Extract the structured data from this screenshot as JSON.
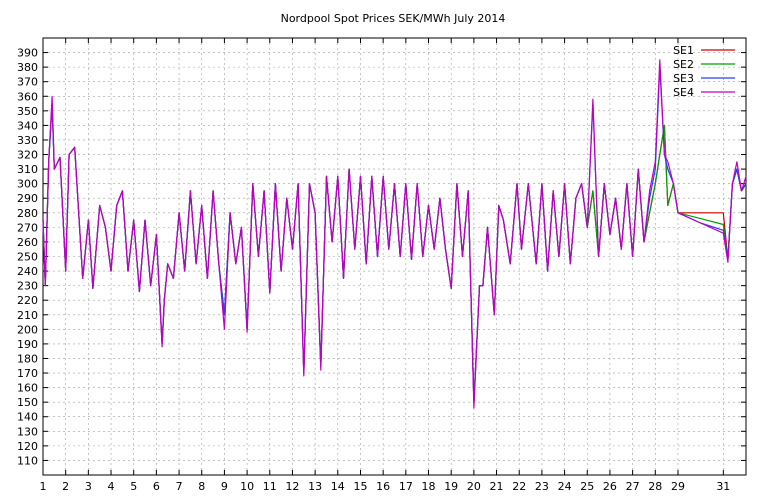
{
  "chart_data": {
    "type": "line",
    "title": "Nordpool Spot Prices SEK/MWh July 2014",
    "xlabel": "",
    "ylabel": "",
    "xlim": [
      1,
      32
    ],
    "ylim": [
      100,
      400
    ],
    "x_ticks": [
      "1",
      "2",
      "3",
      "4",
      "5",
      "6",
      "7",
      "8",
      "9",
      "10",
      "11",
      "12",
      "13",
      "14",
      "15",
      "16",
      "17",
      "18",
      "19",
      "20",
      "21",
      "22",
      "23",
      "24",
      "25",
      "26",
      "27",
      "28",
      "29",
      "31"
    ],
    "x_tick_values": [
      1,
      2,
      3,
      4,
      5,
      6,
      7,
      8,
      9,
      10,
      11,
      12,
      13,
      14,
      15,
      16,
      17,
      18,
      19,
      20,
      21,
      22,
      23,
      24,
      25,
      26,
      27,
      28,
      29,
      31
    ],
    "y_ticks": [
      110,
      120,
      130,
      140,
      150,
      160,
      170,
      180,
      190,
      200,
      210,
      220,
      230,
      240,
      250,
      260,
      270,
      280,
      290,
      300,
      310,
      320,
      330,
      340,
      350,
      360,
      370,
      380,
      390
    ],
    "grid": true,
    "legend_position": "top-right",
    "series": [
      {
        "name": "SE1",
        "color": "#d00000",
        "x": [
          1.0,
          1.1,
          1.25,
          1.4,
          1.5,
          1.75,
          2.0,
          2.15,
          2.4,
          2.75,
          3.0,
          3.2,
          3.5,
          3.75,
          4.0,
          4.25,
          4.5,
          4.75,
          5.0,
          5.25,
          5.5,
          5.75,
          6.0,
          6.25,
          6.35,
          6.5,
          6.75,
          7.0,
          7.25,
          7.5,
          7.75,
          8.0,
          8.25,
          8.5,
          8.75,
          9.0,
          9.25,
          9.5,
          9.75,
          10.0,
          10.25,
          10.5,
          10.75,
          11.0,
          11.25,
          11.5,
          11.75,
          12.0,
          12.25,
          12.5,
          12.75,
          13.0,
          13.25,
          13.5,
          13.75,
          14.0,
          14.25,
          14.5,
          14.75,
          15.0,
          15.25,
          15.5,
          15.75,
          16.0,
          16.25,
          16.5,
          16.75,
          17.0,
          17.25,
          17.5,
          17.75,
          18.0,
          18.25,
          18.5,
          18.75,
          19.0,
          19.25,
          19.5,
          19.75,
          20.0,
          20.25,
          20.4,
          20.6,
          20.9,
          21.1,
          21.3,
          21.6,
          21.9,
          22.1,
          22.4,
          22.75,
          23.0,
          23.25,
          23.5,
          23.75,
          24.0,
          24.25,
          24.5,
          24.75,
          25.0,
          25.25,
          25.5,
          25.75,
          26.0,
          26.25,
          26.5,
          26.75,
          27.0,
          27.25,
          27.5,
          27.75,
          28.0,
          28.2,
          28.4,
          28.55,
          28.8,
          29.0,
          30.0,
          31.0,
          31.2,
          31.4,
          31.6,
          31.8,
          32.0
        ],
        "values": [
          275,
          230,
          315,
          355,
          310,
          318,
          240,
          320,
          325,
          235,
          275,
          228,
          285,
          270,
          240,
          285,
          295,
          240,
          275,
          226,
          275,
          230,
          265,
          190,
          220,
          245,
          235,
          280,
          240,
          295,
          245,
          285,
          235,
          295,
          245,
          210,
          280,
          245,
          270,
          200,
          300,
          250,
          295,
          225,
          300,
          240,
          290,
          255,
          300,
          170,
          300,
          280,
          175,
          305,
          260,
          305,
          235,
          310,
          255,
          305,
          245,
          305,
          250,
          305,
          255,
          300,
          250,
          300,
          248,
          300,
          250,
          285,
          255,
          290,
          255,
          228,
          300,
          250,
          295,
          150,
          230,
          230,
          270,
          210,
          285,
          275,
          245,
          300,
          255,
          300,
          245,
          300,
          240,
          295,
          250,
          300,
          245,
          290,
          300,
          270,
          295,
          250,
          300,
          265,
          290,
          255,
          300,
          250,
          310,
          260,
          280,
          300,
          320,
          340,
          285,
          300,
          280,
          280,
          280,
          248,
          300,
          310,
          295,
          300
        ]
      },
      {
        "name": "SE2",
        "color": "#00a000",
        "x": [
          1.0,
          1.1,
          1.25,
          1.4,
          1.5,
          1.75,
          2.0,
          2.15,
          2.4,
          2.75,
          3.0,
          3.2,
          3.5,
          3.75,
          4.0,
          4.25,
          4.5,
          4.75,
          5.0,
          5.25,
          5.5,
          5.75,
          6.0,
          6.25,
          6.35,
          6.5,
          6.75,
          7.0,
          7.25,
          7.5,
          7.75,
          8.0,
          8.25,
          8.5,
          8.75,
          9.0,
          9.25,
          9.5,
          9.75,
          10.0,
          10.25,
          10.5,
          10.75,
          11.0,
          11.25,
          11.5,
          11.75,
          12.0,
          12.25,
          12.5,
          12.75,
          13.0,
          13.25,
          13.5,
          13.75,
          14.0,
          14.25,
          14.5,
          14.75,
          15.0,
          15.25,
          15.5,
          15.75,
          16.0,
          16.25,
          16.5,
          16.75,
          17.0,
          17.25,
          17.5,
          17.75,
          18.0,
          18.25,
          18.5,
          18.75,
          19.0,
          19.25,
          19.5,
          19.75,
          20.0,
          20.25,
          20.4,
          20.6,
          20.9,
          21.1,
          21.3,
          21.6,
          21.9,
          22.1,
          22.4,
          22.75,
          23.0,
          23.25,
          23.5,
          23.75,
          24.0,
          24.25,
          24.5,
          24.75,
          25.0,
          25.25,
          25.5,
          25.75,
          26.0,
          26.25,
          26.5,
          26.75,
          27.0,
          27.25,
          27.5,
          27.75,
          28.0,
          28.2,
          28.4,
          28.55,
          28.8,
          29.0,
          30.0,
          31.0,
          31.2,
          31.4,
          31.6,
          31.8,
          32.0
        ],
        "values": [
          275,
          230,
          315,
          355,
          310,
          318,
          240,
          320,
          325,
          235,
          275,
          228,
          285,
          270,
          240,
          285,
          295,
          240,
          275,
          226,
          275,
          230,
          265,
          190,
          220,
          245,
          235,
          280,
          240,
          295,
          245,
          285,
          235,
          295,
          245,
          210,
          280,
          245,
          270,
          200,
          300,
          250,
          295,
          225,
          300,
          240,
          290,
          255,
          300,
          170,
          300,
          280,
          175,
          305,
          260,
          305,
          235,
          310,
          255,
          305,
          245,
          305,
          250,
          305,
          255,
          300,
          250,
          300,
          248,
          300,
          250,
          285,
          255,
          290,
          255,
          228,
          300,
          250,
          295,
          150,
          230,
          230,
          270,
          210,
          285,
          275,
          245,
          300,
          255,
          300,
          245,
          300,
          240,
          295,
          250,
          300,
          245,
          290,
          300,
          270,
          295,
          250,
          300,
          265,
          290,
          255,
          300,
          250,
          310,
          260,
          280,
          300,
          320,
          340,
          285,
          300,
          280,
          276,
          272,
          248,
          300,
          310,
          295,
          300
        ]
      },
      {
        "name": "SE3",
        "color": "#2040ff",
        "x": [
          1.0,
          1.1,
          1.25,
          1.4,
          1.5,
          1.75,
          2.0,
          2.15,
          2.4,
          2.75,
          3.0,
          3.2,
          3.5,
          3.75,
          4.0,
          4.25,
          4.5,
          4.75,
          5.0,
          5.25,
          5.5,
          5.75,
          6.0,
          6.25,
          6.35,
          6.5,
          6.75,
          7.0,
          7.25,
          7.5,
          7.75,
          8.0,
          8.25,
          8.5,
          8.75,
          9.0,
          9.25,
          9.5,
          9.75,
          10.0,
          10.25,
          10.5,
          10.75,
          11.0,
          11.25,
          11.5,
          11.75,
          12.0,
          12.25,
          12.5,
          12.75,
          13.0,
          13.25,
          13.5,
          13.75,
          14.0,
          14.25,
          14.5,
          14.75,
          15.0,
          15.25,
          15.5,
          15.75,
          16.0,
          16.25,
          16.5,
          16.75,
          17.0,
          17.25,
          17.5,
          17.75,
          18.0,
          18.25,
          18.5,
          18.75,
          19.0,
          19.25,
          19.5,
          19.75,
          20.0,
          20.25,
          20.4,
          20.6,
          20.9,
          21.1,
          21.3,
          21.6,
          21.9,
          22.1,
          22.4,
          22.75,
          23.0,
          23.25,
          23.5,
          23.75,
          24.0,
          24.25,
          24.5,
          24.75,
          25.0,
          25.25,
          25.5,
          25.75,
          26.0,
          26.25,
          26.5,
          26.75,
          27.0,
          27.25,
          27.5,
          27.75,
          28.0,
          28.2,
          28.4,
          28.55,
          28.8,
          29.0,
          30.0,
          31.0,
          31.2,
          31.4,
          31.6,
          31.8,
          32.0
        ],
        "values": [
          275,
          230,
          315,
          355,
          310,
          318,
          240,
          320,
          325,
          235,
          275,
          228,
          285,
          270,
          240,
          285,
          295,
          240,
          275,
          226,
          275,
          230,
          265,
          190,
          220,
          245,
          235,
          280,
          240,
          295,
          245,
          285,
          235,
          295,
          245,
          210,
          280,
          245,
          270,
          200,
          300,
          250,
          295,
          225,
          300,
          240,
          290,
          255,
          300,
          170,
          300,
          280,
          175,
          305,
          260,
          305,
          235,
          310,
          255,
          305,
          245,
          305,
          250,
          305,
          255,
          300,
          250,
          300,
          248,
          300,
          250,
          285,
          255,
          290,
          255,
          228,
          300,
          250,
          295,
          150,
          230,
          230,
          270,
          210,
          285,
          275,
          245,
          300,
          255,
          300,
          245,
          300,
          240,
          295,
          250,
          300,
          245,
          290,
          300,
          270,
          355,
          250,
          300,
          265,
          290,
          255,
          300,
          250,
          310,
          260,
          290,
          310,
          380,
          320,
          310,
          300,
          280,
          273,
          268,
          248,
          300,
          310,
          295,
          300
        ]
      },
      {
        "name": "SE4",
        "color": "#c000c0",
        "x": [
          1.0,
          1.1,
          1.25,
          1.4,
          1.5,
          1.75,
          2.0,
          2.15,
          2.4,
          2.75,
          3.0,
          3.2,
          3.5,
          3.75,
          4.0,
          4.25,
          4.5,
          4.75,
          5.0,
          5.25,
          5.5,
          5.75,
          6.0,
          6.25,
          6.35,
          6.5,
          6.75,
          7.0,
          7.25,
          7.5,
          7.75,
          8.0,
          8.25,
          8.5,
          8.75,
          9.0,
          9.25,
          9.5,
          9.75,
          10.0,
          10.25,
          10.5,
          10.75,
          11.0,
          11.25,
          11.5,
          11.75,
          12.0,
          12.25,
          12.5,
          12.75,
          13.0,
          13.25,
          13.5,
          13.75,
          14.0,
          14.25,
          14.5,
          14.75,
          15.0,
          15.25,
          15.5,
          15.75,
          16.0,
          16.25,
          16.5,
          16.75,
          17.0,
          17.25,
          17.5,
          17.75,
          18.0,
          18.25,
          18.5,
          18.75,
          19.0,
          19.25,
          19.5,
          19.75,
          20.0,
          20.25,
          20.4,
          20.6,
          20.9,
          21.1,
          21.3,
          21.6,
          21.9,
          22.1,
          22.4,
          22.75,
          23.0,
          23.25,
          23.5,
          23.75,
          24.0,
          24.25,
          24.5,
          24.75,
          25.0,
          25.25,
          25.5,
          25.75,
          26.0,
          26.25,
          26.5,
          26.75,
          27.0,
          27.25,
          27.5,
          27.75,
          28.0,
          28.2,
          28.4,
          28.55,
          28.8,
          29.0,
          30.0,
          31.0,
          31.2,
          31.4,
          31.6,
          31.8,
          32.0
        ],
        "values": [
          275,
          230,
          315,
          360,
          310,
          318,
          240,
          320,
          325,
          235,
          275,
          228,
          285,
          270,
          240,
          285,
          295,
          240,
          275,
          226,
          275,
          230,
          265,
          188,
          220,
          245,
          235,
          280,
          240,
          295,
          245,
          285,
          235,
          295,
          245,
          200,
          280,
          245,
          270,
          198,
          300,
          250,
          295,
          225,
          300,
          240,
          290,
          255,
          300,
          168,
          300,
          280,
          172,
          305,
          260,
          305,
          235,
          310,
          255,
          305,
          245,
          305,
          250,
          305,
          255,
          300,
          250,
          300,
          248,
          300,
          250,
          285,
          255,
          290,
          255,
          228,
          300,
          250,
          295,
          146,
          230,
          230,
          270,
          210,
          285,
          275,
          245,
          300,
          255,
          300,
          245,
          300,
          240,
          295,
          250,
          300,
          245,
          290,
          300,
          270,
          358,
          250,
          300,
          265,
          290,
          255,
          300,
          250,
          310,
          260,
          295,
          315,
          385,
          320,
          315,
          300,
          280,
          273,
          266,
          246,
          300,
          315,
          295,
          305
        ]
      }
    ]
  }
}
